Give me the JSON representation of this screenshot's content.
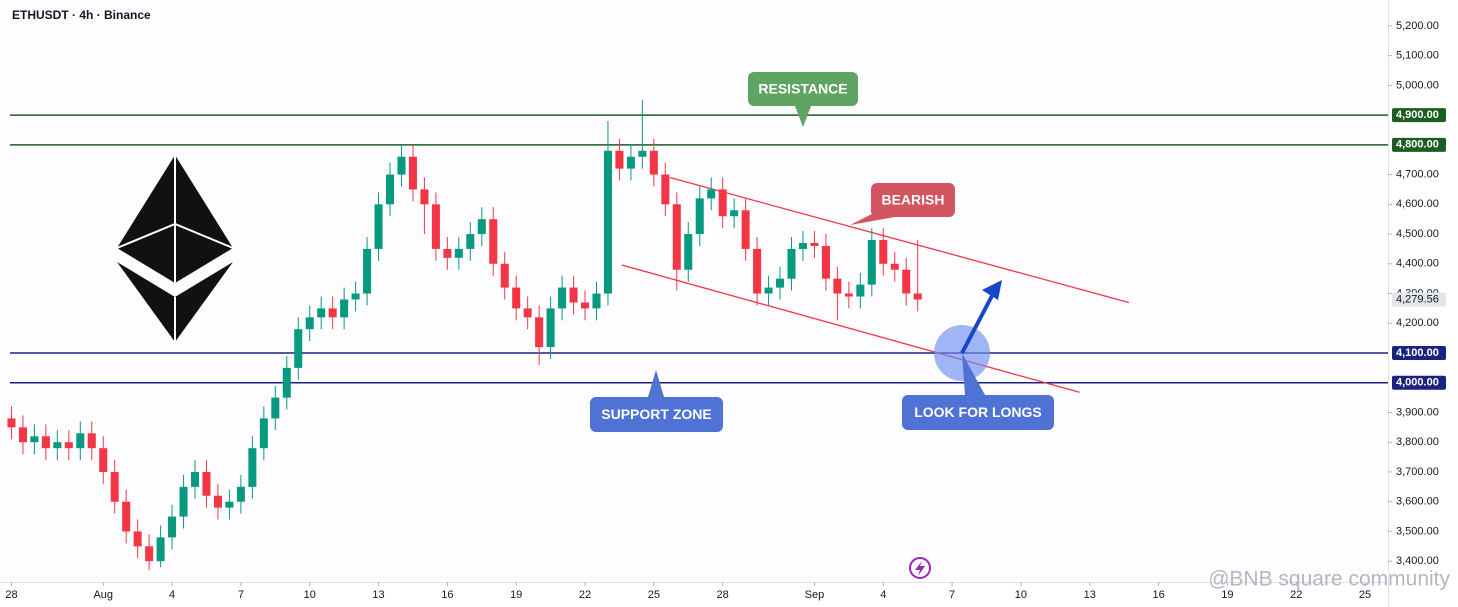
{
  "chart_data": {
    "type": "candlestick",
    "title": "ETHUSDT · 4h · Binance",
    "up_color": "#089981",
    "down_color": "#f23645",
    "xlim": [
      -0.5,
      60
    ],
    "ylim": [
      3330,
      5287
    ],
    "xticks": [
      {
        "value": 0,
        "label": "28"
      },
      {
        "value": 4,
        "label": "Aug"
      },
      {
        "value": 7,
        "label": "4"
      },
      {
        "value": 10,
        "label": "7"
      },
      {
        "value": 13,
        "label": "10"
      },
      {
        "value": 16,
        "label": "13"
      },
      {
        "value": 19,
        "label": "16"
      },
      {
        "value": 22,
        "label": "19"
      },
      {
        "value": 25,
        "label": "22"
      },
      {
        "value": 28,
        "label": "25"
      },
      {
        "value": 31,
        "label": "28"
      },
      {
        "value": 35,
        "label": "Sep"
      },
      {
        "value": 38,
        "label": "4"
      },
      {
        "value": 41,
        "label": "7"
      },
      {
        "value": 44,
        "label": "10"
      },
      {
        "value": 47,
        "label": "13"
      },
      {
        "value": 50,
        "label": "16"
      },
      {
        "value": 53,
        "label": "19"
      },
      {
        "value": 56,
        "label": "22"
      },
      {
        "value": 59,
        "label": "25"
      }
    ],
    "yticks": [
      {
        "value": 5200,
        "label": "5,200.00"
      },
      {
        "value": 5100,
        "label": "5,100.00"
      },
      {
        "value": 5000,
        "label": "5,000.00"
      },
      {
        "value": 4700,
        "label": "4,700.00"
      },
      {
        "value": 4600,
        "label": "4,600.00"
      },
      {
        "value": 4500,
        "label": "4,500.00"
      },
      {
        "value": 4400,
        "label": "4,400.00"
      },
      {
        "value": 4300,
        "label": "4,300.00"
      },
      {
        "value": 4200,
        "label": "4,200.00"
      },
      {
        "value": 3900,
        "label": "3,900.00"
      },
      {
        "value": 3800,
        "label": "3,800.00"
      },
      {
        "value": 3700,
        "label": "3,700.00"
      },
      {
        "value": 3600,
        "label": "3,600.00"
      },
      {
        "value": 3500,
        "label": "3,500.00"
      },
      {
        "value": 3400,
        "label": "3,400.00"
      }
    ],
    "levels": [
      {
        "value": 4900,
        "label": "4,900.00",
        "color": "#1b5e20"
      },
      {
        "value": 4800,
        "label": "4,800.00",
        "color": "#1b5e20"
      },
      {
        "value": 4100,
        "label": "4,100.00",
        "color": "#1a237e"
      },
      {
        "value": 4000,
        "label": "4,000.00",
        "color": "#1a237e"
      }
    ],
    "last_price": {
      "value": 4279.56,
      "label": "4,279.56"
    },
    "trendlines": [
      {
        "x": [
          28.7,
          48.7
        ],
        "y": [
          4690,
          4270
        ],
        "color": "#f23645"
      },
      {
        "x": [
          26.6,
          46.55
        ],
        "y": [
          4396,
          3968
        ],
        "color": "#f23645"
      }
    ],
    "annotations": [
      {
        "text": "RESISTANCE",
        "color": "#5fa463"
      },
      {
        "text": "BEARISH",
        "color": "#d2555f"
      },
      {
        "text": "SUPPORT ZONE",
        "color": "#4e73d4"
      },
      {
        "text": "LOOK FOR LONGS",
        "color": "#4e73d4"
      }
    ],
    "watermark": "@BNB square community",
    "x": [
      0,
      0.5,
      1,
      1.5,
      2,
      2.5,
      3,
      3.5,
      4,
      4.5,
      5,
      5.5,
      6,
      6.5,
      7,
      7.5,
      8,
      8.5,
      9,
      9.5,
      10,
      10.5,
      11,
      11.5,
      12,
      12.5,
      13,
      13.5,
      14,
      14.5,
      15,
      15.5,
      16,
      16.5,
      17,
      17.5,
      18,
      18.5,
      19,
      19.5,
      20,
      20.5,
      21,
      21.5,
      22,
      22.5,
      23,
      23.5,
      24,
      24.5,
      25,
      25.5,
      26,
      26.5,
      27,
      27.5,
      28,
      28.5,
      29,
      29.5,
      30,
      30.5,
      31,
      31.5,
      32,
      32.5,
      33,
      33.5,
      34,
      34.5,
      35,
      35.5,
      36,
      36.5,
      37,
      37.5,
      38,
      38.5,
      39,
      39.5
    ],
    "open": [
      3880,
      3850,
      3800,
      3820,
      3780,
      3800,
      3780,
      3830,
      3780,
      3700,
      3600,
      3500,
      3450,
      3400,
      3480,
      3550,
      3650,
      3700,
      3620,
      3580,
      3600,
      3650,
      3780,
      3880,
      3950,
      4050,
      4180,
      4220,
      4250,
      4220,
      4280,
      4300,
      4450,
      4600,
      4700,
      4760,
      4650,
      4600,
      4450,
      4420,
      4450,
      4500,
      4550,
      4400,
      4320,
      4250,
      4220,
      4120,
      4250,
      4320,
      4270,
      4250,
      4300,
      4780,
      4720,
      4760,
      4780,
      4700,
      4600,
      4380,
      4500,
      4620,
      4650,
      4560,
      4580,
      4450,
      4300,
      4320,
      4350,
      4450,
      4470,
      4460,
      4350,
      4300,
      4290,
      4330,
      4480,
      4400,
      4380,
      4300
    ],
    "high": [
      3920,
      3890,
      3860,
      3860,
      3840,
      3840,
      3870,
      3870,
      3820,
      3740,
      3640,
      3540,
      3490,
      3520,
      3590,
      3690,
      3740,
      3740,
      3660,
      3640,
      3690,
      3820,
      3920,
      3990,
      4090,
      4220,
      4260,
      4290,
      4290,
      4320,
      4340,
      4490,
      4640,
      4740,
      4800,
      4800,
      4690,
      4640,
      4490,
      4490,
      4540,
      4590,
      4590,
      4440,
      4360,
      4290,
      4260,
      4290,
      4360,
      4360,
      4310,
      4340,
      4880,
      4820,
      4800,
      4950,
      4820,
      4740,
      4640,
      4540,
      4660,
      4690,
      4690,
      4620,
      4620,
      4490,
      4360,
      4390,
      4490,
      4510,
      4510,
      4500,
      4390,
      4340,
      4370,
      4520,
      4520,
      4440,
      4420,
      4480
    ],
    "low": [
      3810,
      3760,
      3760,
      3740,
      3740,
      3740,
      3740,
      3740,
      3660,
      3560,
      3460,
      3410,
      3370,
      3380,
      3440,
      3510,
      3610,
      3580,
      3540,
      3540,
      3560,
      3610,
      3740,
      3840,
      3910,
      4010,
      4140,
      4180,
      4180,
      4180,
      4240,
      4260,
      4410,
      4560,
      4660,
      4610,
      4500,
      4410,
      4380,
      4380,
      4410,
      4460,
      4360,
      4280,
      4210,
      4180,
      4060,
      4080,
      4210,
      4230,
      4210,
      4210,
      4260,
      4680,
      4680,
      4720,
      4660,
      4560,
      4310,
      4340,
      4460,
      4580,
      4520,
      4520,
      4410,
      4260,
      4260,
      4280,
      4310,
      4410,
      4420,
      4310,
      4210,
      4250,
      4250,
      4290,
      4360,
      4340,
      4260,
      4240
    ],
    "close": [
      3850,
      3800,
      3820,
      3780,
      3800,
      3780,
      3830,
      3780,
      3700,
      3600,
      3500,
      3450,
      3400,
      3480,
      3550,
      3650,
      3700,
      3620,
      3580,
      3600,
      3650,
      3780,
      3880,
      3950,
      4050,
      4180,
      4220,
      4250,
      4220,
      4280,
      4300,
      4450,
      4600,
      4700,
      4760,
      4650,
      4600,
      4450,
      4420,
      4450,
      4500,
      4550,
      4400,
      4320,
      4250,
      4220,
      4120,
      4250,
      4320,
      4270,
      4250,
      4300,
      4780,
      4720,
      4760,
      4780,
      4700,
      4600,
      4380,
      4500,
      4620,
      4650,
      4560,
      4580,
      4450,
      4300,
      4320,
      4350,
      4450,
      4470,
      4460,
      4350,
      4300,
      4290,
      4330,
      4480,
      4400,
      4380,
      4300,
      4280
    ]
  }
}
